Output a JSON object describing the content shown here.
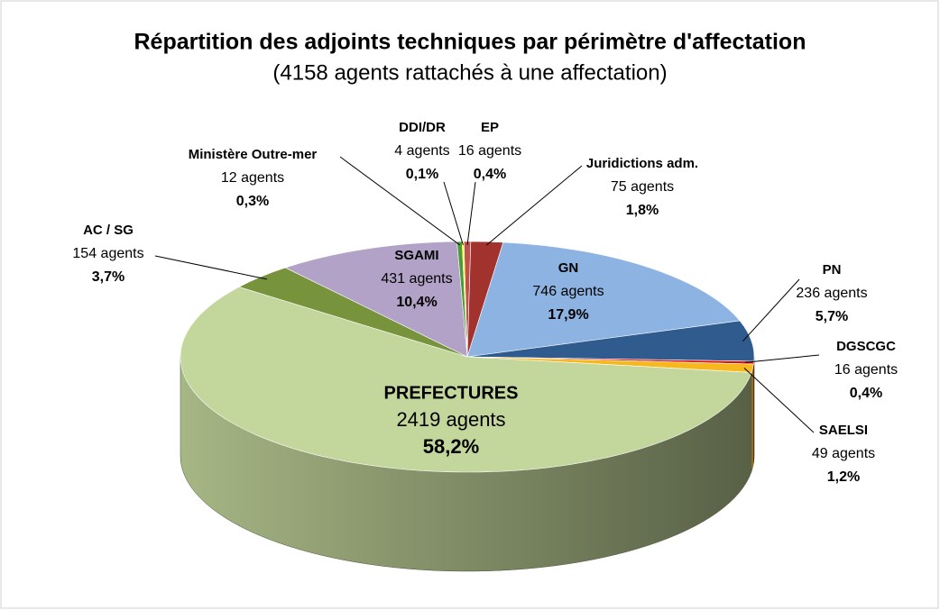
{
  "chart_data": {
    "type": "pie3d",
    "title": "Répartition des adjoints techniques par périmètre d'affectation",
    "subtitle": "(4158 agents rattachés à une affectation)",
    "categories": [
      "EP",
      "Juridictions adm.",
      "GN",
      "PN",
      "DGSCGC",
      "SAELSI",
      "PREFECTURES",
      "AC / SG",
      "SGAMI",
      "Ministère Outre-mer",
      "DDI/DR"
    ],
    "values": [
      16,
      75,
      746,
      236,
      16,
      49,
      2419,
      154,
      431,
      12,
      4
    ],
    "value_labels": [
      "16 agents",
      "75 agents",
      "746 agents",
      "236 agents",
      "16 agents",
      "49 agents",
      "2419 agents",
      "154 agents",
      "431 agents",
      "12 agents",
      "4 agents"
    ],
    "percentages": [
      0.4,
      1.8,
      17.9,
      5.7,
      0.4,
      1.2,
      58.2,
      3.7,
      10.4,
      0.3,
      0.1
    ],
    "percent_labels": [
      "0,4%",
      "1,8%",
      "17,9%",
      "5,7%",
      "0,4%",
      "1,2%",
      "58,2%",
      "3,7%",
      "10,4%",
      "0,3%",
      "0,1%"
    ],
    "colors": [
      "#c0504d",
      "#a2322e",
      "#8db3e2",
      "#2f5b8e",
      "#e01010",
      "#f7b81e",
      "#c3d69b",
      "#77933c",
      "#b3a2c7",
      "#4e9a3a",
      "#ffff00"
    ]
  }
}
